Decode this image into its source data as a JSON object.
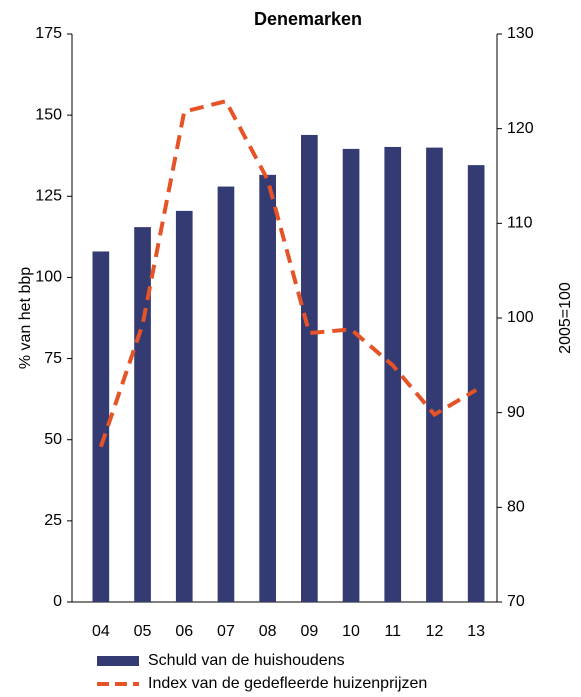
{
  "chart_data": {
    "type": "bar",
    "title": "Denemarken",
    "categories": [
      "04",
      "05",
      "06",
      "07",
      "08",
      "09",
      "10",
      "11",
      "12",
      "13"
    ],
    "series": [
      {
        "name": "Schuld van de huishoudens",
        "type": "bar",
        "color": "#343a72",
        "values": [
          108,
          115.5,
          120.5,
          128,
          131.6,
          143.9,
          139.6,
          140.2,
          140,
          134.6
        ]
      },
      {
        "name": "Index van de gedefleerde huizenprijzen",
        "type": "line",
        "axis": "y2",
        "color": "#e55327",
        "dashed": true,
        "values": [
          86.4,
          99.3,
          121.8,
          122.9,
          114.6,
          98.4,
          98.8,
          95,
          89.8,
          92.4
        ]
      }
    ],
    "ylabel": "% van het bbp",
    "y2label": "2005=100",
    "ylim": [
      0,
      175
    ],
    "yticks": [
      0,
      25,
      50,
      75,
      100,
      125,
      150,
      175
    ],
    "y2lim": [
      70,
      130
    ],
    "y2ticks": [
      70,
      80,
      90,
      100,
      110,
      120,
      130
    ],
    "grid": false
  }
}
